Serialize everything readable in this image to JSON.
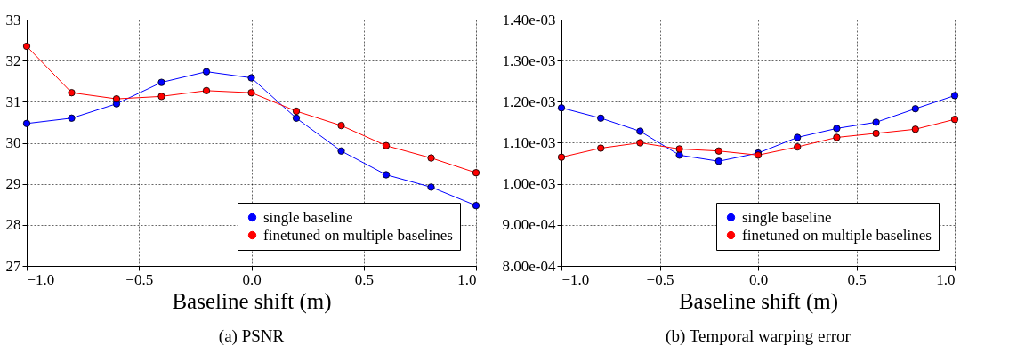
{
  "chart_data": [
    {
      "type": "line",
      "title": "(a) PSNR",
      "xlabel": "Baseline shift (m)",
      "x": [
        -1.0,
        -0.8,
        -0.6,
        -0.4,
        -0.2,
        0.0,
        0.2,
        0.4,
        0.6,
        0.8,
        1.0
      ],
      "series": [
        {
          "name": "single baseline",
          "color": "#0000ff",
          "values": [
            30.47,
            30.6,
            30.95,
            31.47,
            31.73,
            31.58,
            30.6,
            29.8,
            29.22,
            28.92,
            28.47
          ]
        },
        {
          "name": "finetuned on multiple baselines",
          "color": "#ff0000",
          "values": [
            32.35,
            31.22,
            31.07,
            31.13,
            31.27,
            31.22,
            30.77,
            30.42,
            29.93,
            29.63,
            29.27
          ]
        }
      ],
      "xlim": [
        -1.0,
        1.0
      ],
      "xticks": [
        {
          "value": -1.0,
          "label": "−1.0"
        },
        {
          "value": -0.5,
          "label": "−0.5"
        },
        {
          "value": 0.0,
          "label": "0.0"
        },
        0.5,
        {
          "value": 1.0,
          "label": "1.0"
        }
      ],
      "ylim": [
        27,
        33
      ],
      "yticks": [
        27,
        28,
        29,
        30,
        31,
        32,
        33
      ],
      "grid": true,
      "legend": "bottom right",
      "marker": "circle",
      "line_style": "solid"
    },
    {
      "type": "line",
      "title": "(b) Temporal warping error",
      "xlabel": "Baseline shift (m)",
      "x": [
        -1.0,
        -0.8,
        -0.6,
        -0.4,
        -0.2,
        0.0,
        0.2,
        0.4,
        0.6,
        0.8,
        1.0
      ],
      "series": [
        {
          "name": "single baseline",
          "color": "#0000ff",
          "values": [
            0.001185,
            0.00116,
            0.001128,
            0.00107,
            0.001055,
            0.001075,
            0.001113,
            0.001135,
            0.00115,
            0.001183,
            0.001215
          ]
        },
        {
          "name": "finetuned on multiple baselines",
          "color": "#ff0000",
          "values": [
            0.001065,
            0.001087,
            0.0011,
            0.001085,
            0.00108,
            0.00107,
            0.00109,
            0.001113,
            0.001123,
            0.001133,
            0.001157
          ]
        }
      ],
      "xlim": [
        -1.0,
        1.0
      ],
      "xticks": [
        {
          "value": -1.0,
          "label": "−1.0"
        },
        {
          "value": -0.5,
          "label": "−0.5"
        },
        {
          "value": 0.0,
          "label": "0.0"
        },
        0.5,
        {
          "value": 1.0,
          "label": "1.0"
        }
      ],
      "ylim": [
        0.0008,
        0.0014
      ],
      "yticks": [
        {
          "value": 0.0008,
          "label": "8.00e-04"
        },
        {
          "value": 0.0009,
          "label": "9.00e-04"
        },
        {
          "value": 0.001,
          "label": "1.00e-03"
        },
        {
          "value": 0.0011,
          "label": "1.10e-03"
        },
        {
          "value": 0.0012,
          "label": "1.20e-03"
        },
        {
          "value": 0.0013,
          "label": "1.30e-03"
        },
        {
          "value": 0.0014,
          "label": "1.40e-03"
        }
      ],
      "grid": true,
      "legend": "bottom right",
      "marker": "circle",
      "line_style": "solid"
    }
  ]
}
